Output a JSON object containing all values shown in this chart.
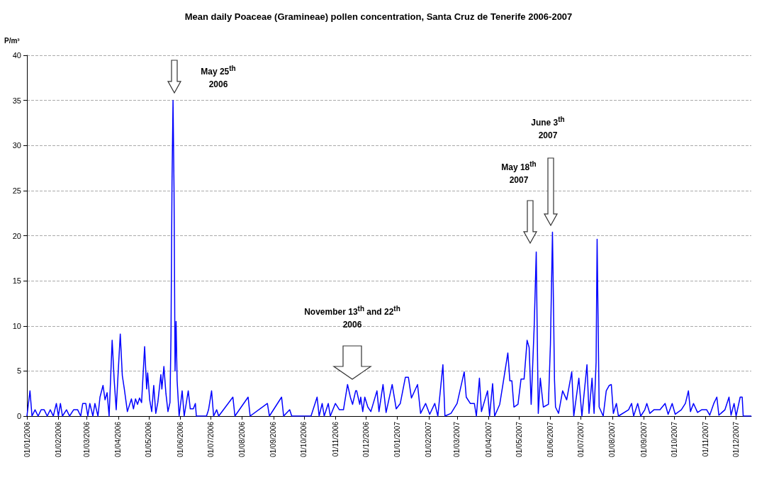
{
  "chart_data": {
    "type": "line",
    "title": "Mean daily Poaceae (Gramineae) pollen concentration, Santa Cruz de Tenerife 2006-2007",
    "ylabel": "P/m³",
    "x": [
      "2006-01-01",
      "2006-01-04",
      "2006-01-06",
      "2006-01-09",
      "2006-01-12",
      "2006-01-15",
      "2006-01-18",
      "2006-01-21",
      "2006-01-24",
      "2006-01-27",
      "2006-01-30",
      "2006-02-01",
      "2006-02-03",
      "2006-02-05",
      "2006-02-09",
      "2006-02-12",
      "2006-02-16",
      "2006-02-20",
      "2006-02-23",
      "2006-02-25",
      "2006-02-28",
      "2006-03-02",
      "2006-03-04",
      "2006-03-07",
      "2006-03-09",
      "2006-03-12",
      "2006-03-14",
      "2006-03-17",
      "2006-03-19",
      "2006-03-21",
      "2006-03-23",
      "2006-03-26",
      "2006-03-28",
      "2006-03-30",
      "2006-04-01",
      "2006-04-03",
      "2006-04-05",
      "2006-04-07",
      "2006-04-10",
      "2006-04-14",
      "2006-04-16",
      "2006-04-18",
      "2006-04-20",
      "2006-04-22",
      "2006-04-24",
      "2006-04-27",
      "2006-04-29",
      "2006-04-30",
      "2006-05-02",
      "2006-05-04",
      "2006-05-06",
      "2006-05-08",
      "2006-05-10",
      "2006-05-13",
      "2006-05-14",
      "2006-05-16",
      "2006-05-18",
      "2006-05-20",
      "2006-05-22",
      "2006-05-23",
      "2006-05-24",
      "2006-05-25",
      "2006-05-26",
      "2006-05-27",
      "2006-05-28",
      "2006-05-29",
      "2006-05-31",
      "2006-06-03",
      "2006-06-05",
      "2006-06-09",
      "2006-06-11",
      "2006-06-14",
      "2006-06-16",
      "2006-06-17",
      "2006-06-27",
      "2006-06-29",
      "2006-07-02",
      "2006-07-04",
      "2006-07-07",
      "2006-07-09",
      "2006-07-23",
      "2006-07-25",
      "2006-08-07",
      "2006-08-09",
      "2006-08-26",
      "2006-08-28",
      "2006-09-09",
      "2006-09-11",
      "2006-09-17",
      "2006-09-19",
      "2006-10-08",
      "2006-10-14",
      "2006-10-16",
      "2006-10-19",
      "2006-10-21",
      "2006-10-25",
      "2006-10-27",
      "2006-11-01",
      "2006-11-05",
      "2006-11-09",
      "2006-11-13",
      "2006-11-16",
      "2006-11-18",
      "2006-11-21",
      "2006-11-22",
      "2006-11-25",
      "2006-11-26",
      "2006-11-28",
      "2006-11-30",
      "2006-12-03",
      "2006-12-06",
      "2006-12-12",
      "2006-12-14",
      "2006-12-18",
      "2006-12-21",
      "2006-12-27",
      "2006-12-31",
      "2007-01-04",
      "2007-01-09",
      "2007-01-12",
      "2007-01-15",
      "2007-01-21",
      "2007-01-24",
      "2007-01-29",
      "2007-02-02",
      "2007-02-07",
      "2007-02-10",
      "2007-02-15",
      "2007-02-17",
      "2007-02-23",
      "2007-03-01",
      "2007-03-08",
      "2007-03-10",
      "2007-03-14",
      "2007-03-18",
      "2007-03-20",
      "2007-03-23",
      "2007-03-25",
      "2007-03-31",
      "2007-04-02",
      "2007-04-05",
      "2007-04-07",
      "2007-04-12",
      "2007-04-15",
      "2007-04-20",
      "2007-04-22",
      "2007-04-24",
      "2007-04-26",
      "2007-04-30",
      "2007-05-03",
      "2007-05-06",
      "2007-05-09",
      "2007-05-11",
      "2007-05-13",
      "2007-05-16",
      "2007-05-18",
      "2007-05-19",
      "2007-05-20",
      "2007-05-22",
      "2007-05-25",
      "2007-05-30",
      "2007-06-01",
      "2007-06-03",
      "2007-06-05",
      "2007-06-06",
      "2007-06-09",
      "2007-06-13",
      "2007-06-17",
      "2007-06-22",
      "2007-06-24",
      "2007-06-29",
      "2007-07-02",
      "2007-07-07",
      "2007-07-09",
      "2007-07-12",
      "2007-07-14",
      "2007-07-16",
      "2007-07-17",
      "2007-07-19",
      "2007-07-23",
      "2007-07-26",
      "2007-07-29",
      "2007-07-31",
      "2007-08-02",
      "2007-08-05",
      "2007-08-07",
      "2007-08-17",
      "2007-08-20",
      "2007-08-22",
      "2007-08-26",
      "2007-08-29",
      "2007-09-02",
      "2007-09-04",
      "2007-09-07",
      "2007-09-11",
      "2007-09-17",
      "2007-09-22",
      "2007-09-25",
      "2007-09-29",
      "2007-10-02",
      "2007-10-08",
      "2007-10-12",
      "2007-10-15",
      "2007-10-17",
      "2007-10-20",
      "2007-10-24",
      "2007-10-28",
      "2007-11-02",
      "2007-11-05",
      "2007-11-09",
      "2007-11-12",
      "2007-11-14",
      "2007-11-20",
      "2007-11-24",
      "2007-11-26",
      "2007-11-29",
      "2007-12-01",
      "2007-12-05",
      "2007-12-07",
      "2007-12-08",
      "2007-12-16"
    ],
    "series": [
      {
        "color": "#0000ff",
        "values": [
          0,
          2.8,
          0,
          0.7,
          0,
          0.7,
          0.7,
          0,
          0.7,
          0,
          1.4,
          0,
          1.4,
          0,
          0.7,
          0,
          0.7,
          0.7,
          0,
          1.4,
          1.4,
          0,
          1.4,
          0,
          1.4,
          0,
          2.1,
          3.4,
          1.8,
          2.6,
          0,
          8.4,
          4.0,
          0.7,
          5.0,
          9.1,
          4.5,
          3.0,
          0.5,
          1.9,
          0.8,
          1.9,
          1.3,
          2.0,
          1.5,
          7.7,
          3.0,
          4.8,
          1.8,
          0.5,
          3.4,
          0.3,
          1.5,
          4.6,
          3.0,
          5.5,
          2.5,
          0.5,
          1.5,
          9,
          26,
          35,
          25,
          5,
          10.5,
          4.0,
          0,
          2.8,
          0,
          2.8,
          0.8,
          0.8,
          1.4,
          0,
          0,
          0.7,
          2.8,
          0,
          0.7,
          0,
          2.1,
          0,
          2.1,
          0,
          1.4,
          0,
          2.1,
          0,
          0.7,
          0,
          0,
          2.1,
          0,
          1.4,
          0,
          1.4,
          0,
          1.4,
          0.7,
          0.7,
          3.5,
          2.0,
          1.3,
          2.8,
          2.8,
          1.3,
          2.1,
          0.5,
          2.1,
          1.0,
          0.5,
          2.8,
          0.5,
          3.5,
          0.4,
          3.5,
          0.8,
          1.4,
          4.3,
          4.3,
          2.0,
          3.5,
          0.3,
          1.4,
          0.2,
          1.4,
          0,
          5.7,
          0,
          0.3,
          1.4,
          4.9,
          2.1,
          1.4,
          1.4,
          0,
          4.2,
          0.5,
          2.8,
          0,
          3.6,
          0,
          1.3,
          3.4,
          7.0,
          3.9,
          3.9,
          1.0,
          1.3,
          4.1,
          4.1,
          8.4,
          7.6,
          1.3,
          10,
          18.2,
          8.9,
          0.3,
          4.2,
          1.0,
          1.3,
          8,
          20.4,
          4,
          1.0,
          0.3,
          2.8,
          1.8,
          4.9,
          0,
          4.2,
          0,
          5.7,
          0.3,
          4.2,
          0.3,
          6,
          19.6,
          1.0,
          0,
          2.8,
          3.4,
          3.5,
          0.3,
          1.4,
          0,
          0.7,
          1.4,
          0,
          1.4,
          0,
          0.7,
          1.4,
          0.3,
          0.7,
          0.7,
          1.4,
          0.2,
          1.4,
          0.2,
          0.7,
          1.4,
          2.8,
          0.5,
          1.4,
          0.4,
          0.7,
          0.7,
          0.1,
          1.4,
          2.1,
          0.1,
          0.7,
          2.1,
          0.1,
          1.4,
          0,
          2.1,
          2.1,
          0,
          0
        ]
      }
    ],
    "xlim": [
      "2006-01-01",
      "2007-12-16"
    ],
    "xticks": [
      {
        "value": "2006-01-01",
        "label": "01/01/2006"
      },
      {
        "value": "2006-02-01",
        "label": "01/02/2006"
      },
      {
        "value": "2006-03-01",
        "label": "01/03/2006"
      },
      {
        "value": "2006-04-01",
        "label": "01/04/2006"
      },
      {
        "value": "2006-05-01",
        "label": "01/05/2006"
      },
      {
        "value": "2006-06-01",
        "label": "01/06/2006"
      },
      {
        "value": "2006-07-01",
        "label": "01/07/2006"
      },
      {
        "value": "2006-08-01",
        "label": "01/08/2006"
      },
      {
        "value": "2006-09-01",
        "label": "01/09/2006"
      },
      {
        "value": "2006-10-01",
        "label": "01/10/2006"
      },
      {
        "value": "2006-11-01",
        "label": "01/11/2006"
      },
      {
        "value": "2006-12-01",
        "label": "01/12/2006"
      },
      {
        "value": "2007-01-01",
        "label": "01/01/2007"
      },
      {
        "value": "2007-02-01",
        "label": "01/02/2007"
      },
      {
        "value": "2007-03-01",
        "label": "01/03/2007"
      },
      {
        "value": "2007-04-01",
        "label": "01/04/2007"
      },
      {
        "value": "2007-05-01",
        "label": "01/05/2007"
      },
      {
        "value": "2007-06-01",
        "label": "01/06/2007"
      },
      {
        "value": "2007-07-01",
        "label": "01/07/2007"
      },
      {
        "value": "2007-08-01",
        "label": "01/08/2007"
      },
      {
        "value": "2007-09-01",
        "label": "01/09/2007"
      },
      {
        "value": "2007-10-01",
        "label": "01/10/2007"
      },
      {
        "value": "2007-11-01",
        "label": "01/11/2007"
      },
      {
        "value": "2007-12-01",
        "label": "01/12/2007"
      }
    ],
    "ylim": [
      0,
      40
    ],
    "yticks": [
      0,
      5,
      10,
      15,
      20,
      25,
      30,
      35,
      40
    ],
    "grid": "y",
    "marker": "none",
    "annotations": [
      "May 25$^{th}$\n2006",
      "November 13$^{th}$ and 22$^{th}$\n2006",
      "May 18$^{th}$\n2007",
      "June 3$^{th}$\n2007"
    ]
  }
}
